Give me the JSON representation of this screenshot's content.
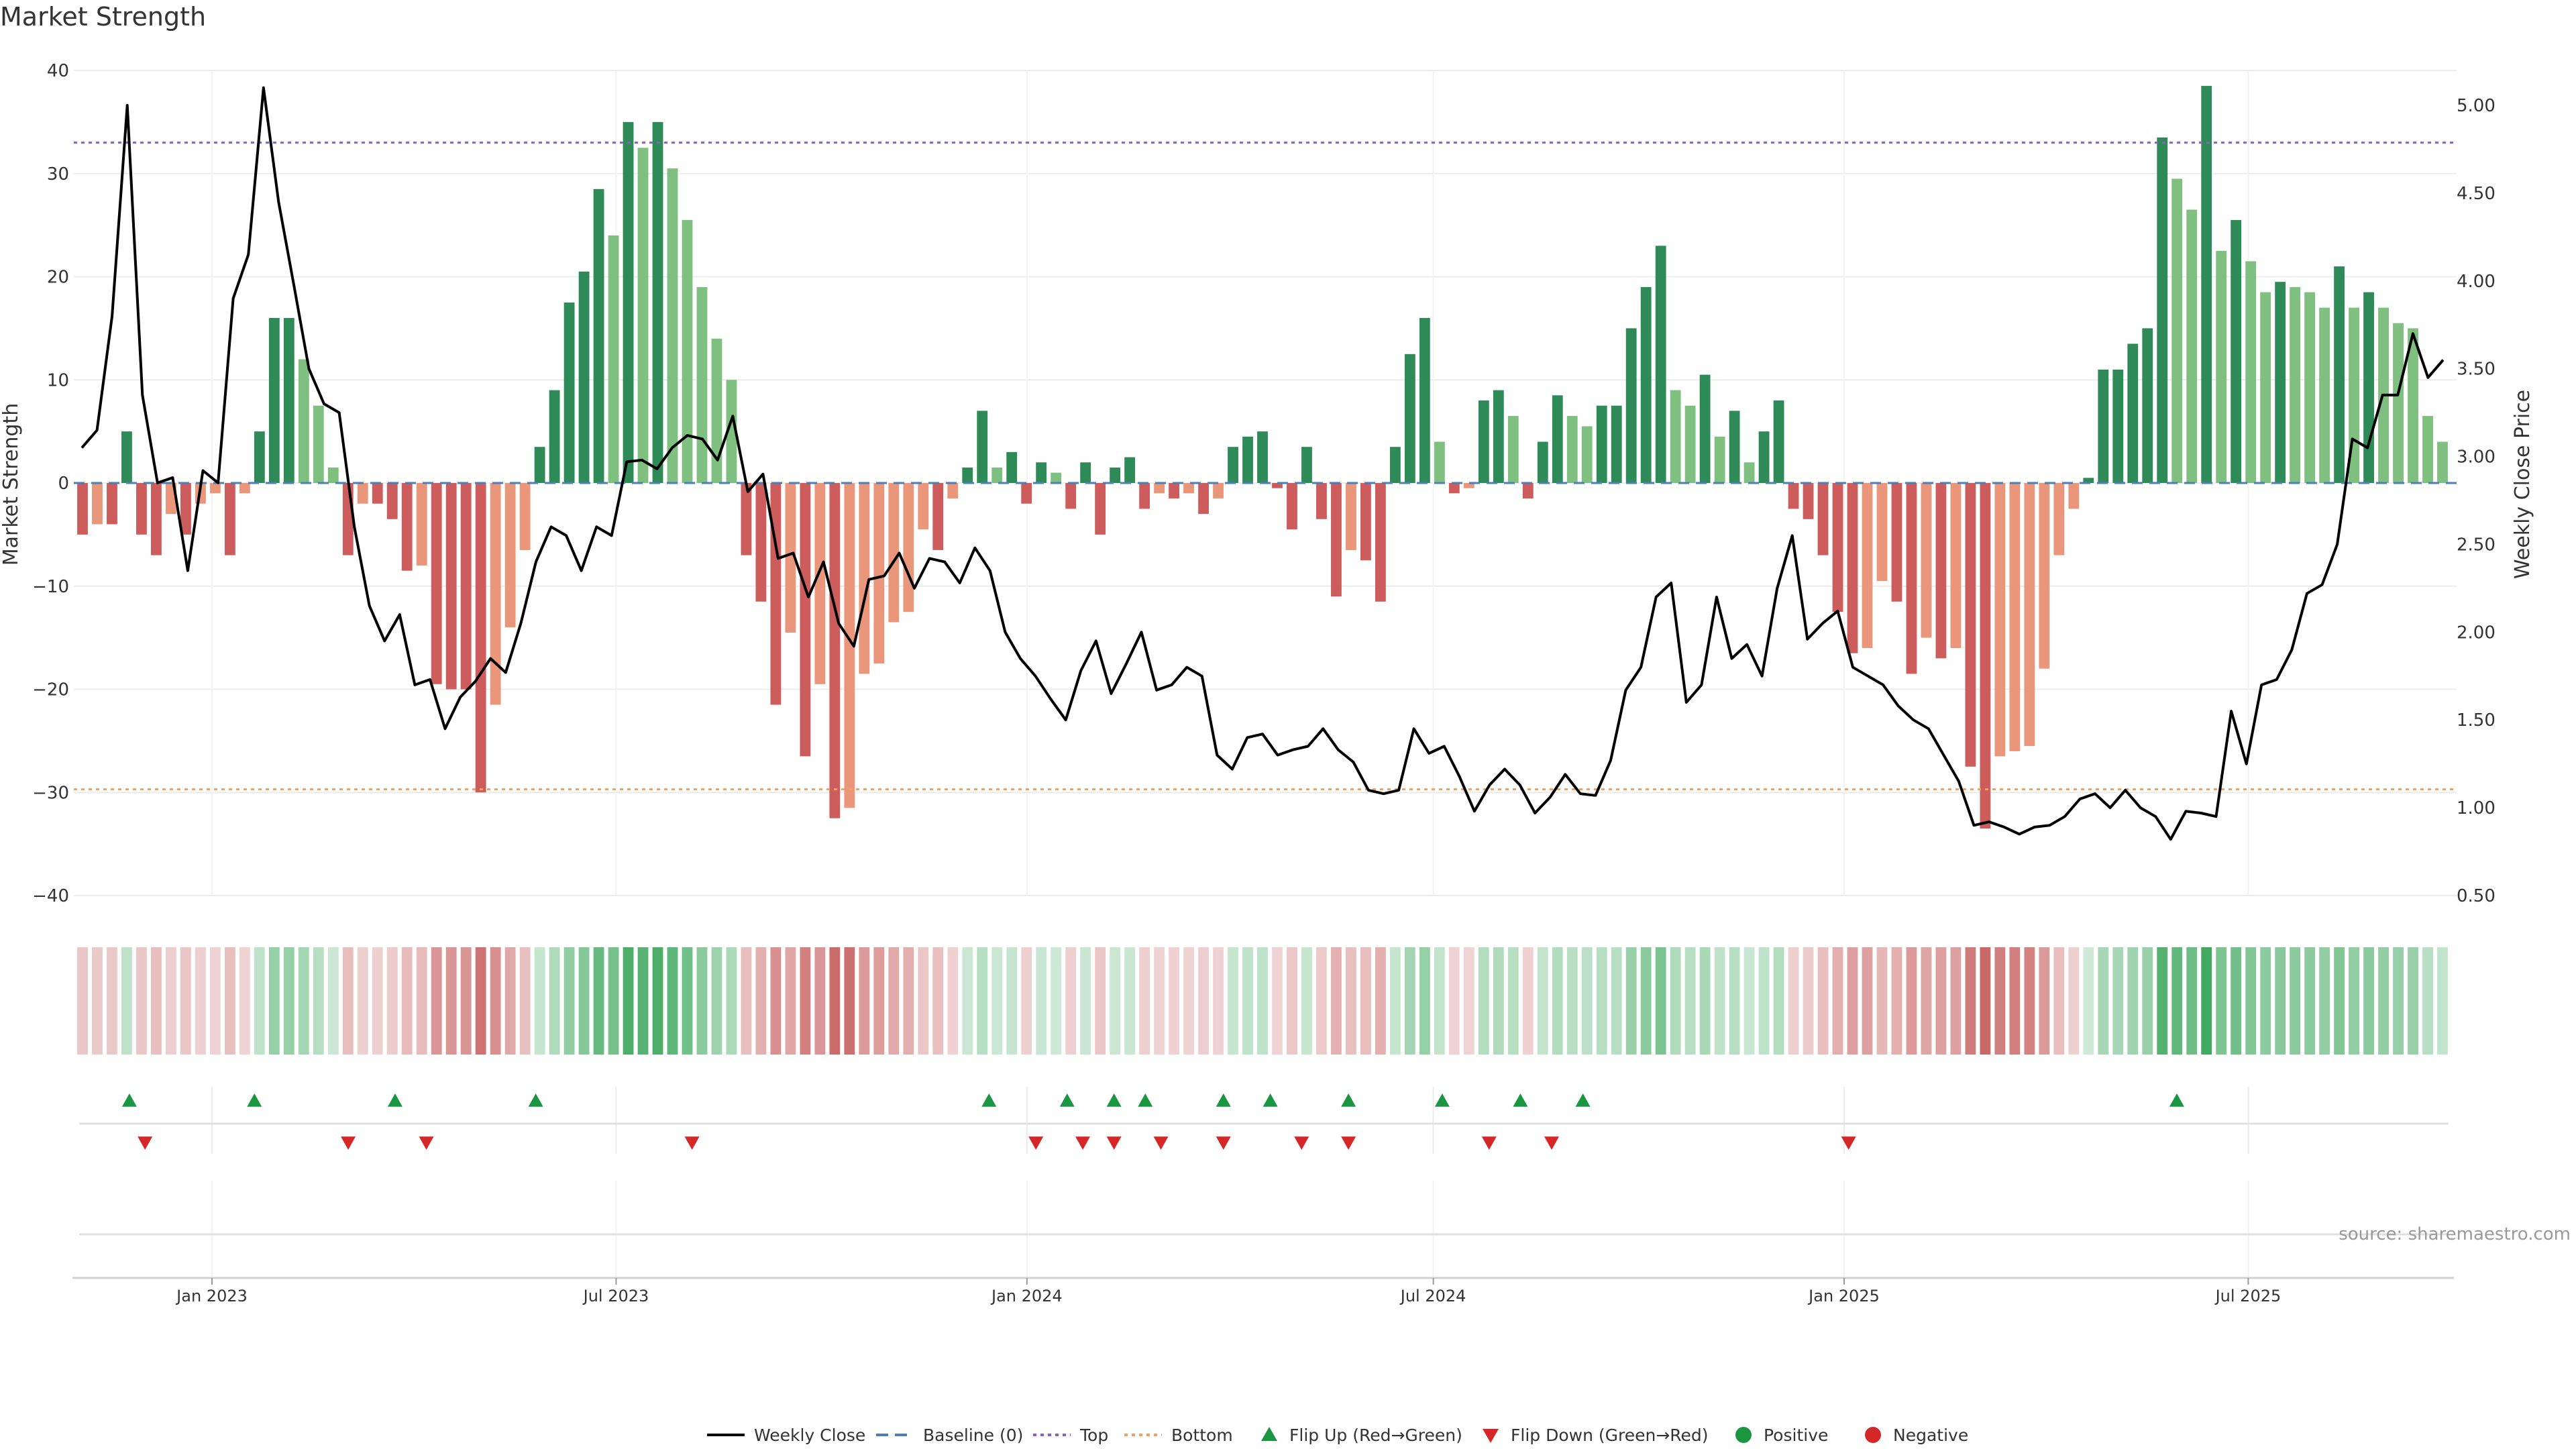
{
  "chart_data": {
    "type": "bar",
    "title": "Market Strength",
    "source": "source: sharemaestro.com",
    "ylabel_left": "Market Strength",
    "ylabel_right": "Weekly Close Price",
    "ylim_left": [
      -40,
      40
    ],
    "ylim_right": [
      0.5,
      5.0
    ],
    "yticks_left": [
      "40",
      "30",
      "20",
      "10",
      "0",
      "−10",
      "−20",
      "−30",
      "−40"
    ],
    "yticks_right": [
      "5.00",
      "4.50",
      "4.00",
      "3.50",
      "3.00",
      "2.50",
      "2.00",
      "1.50",
      "1.00",
      "0.50"
    ],
    "x_tick_labels": [
      "Jan 2023",
      "Jul 2023",
      "Jan 2024",
      "Jul 2024",
      "Jan 2025",
      "Jul 2025"
    ],
    "x_range": [
      "2022-11-04",
      "2025-09-26"
    ],
    "top_threshold": 33,
    "bottom_threshold": -29.7,
    "grid": true,
    "legend_position": "bottom",
    "colors": {
      "strong_green": "#2e8b57",
      "light_green": "#7fbf7f",
      "strong_red": "#cd5c5c",
      "light_red": "#e9967a",
      "price_line": "#000000",
      "top_line": "#8a60c0",
      "bottom_line": "#f0a060",
      "baseline": "#4a7fb8",
      "flip_up": "#1a9641",
      "flip_down": "#d62728"
    },
    "legend": [
      {
        "label": "Weekly Close",
        "symbol": "line"
      },
      {
        "label": "Baseline (0)",
        "symbol": "dash"
      },
      {
        "label": "Top",
        "symbol": "dot-purple"
      },
      {
        "label": "Bottom",
        "symbol": "dot-orange"
      },
      {
        "label": "Flip Up (Red→Green)",
        "symbol": "tri-up"
      },
      {
        "label": "Flip Down (Green→Red)",
        "symbol": "tri-down"
      },
      {
        "label": "Positive",
        "symbol": "dot-green"
      },
      {
        "label": "Negative",
        "symbol": "dot-red"
      }
    ],
    "strength": [
      -5,
      -4,
      -4,
      5,
      -5,
      -7,
      -3,
      -5,
      -2,
      -1,
      -7,
      -1,
      5,
      16,
      16,
      12,
      7.5,
      1.5,
      -7,
      -2,
      -2,
      -3.5,
      -8.5,
      -8,
      -19.5,
      -20,
      -20,
      -30,
      -21.5,
      -14,
      -6.5,
      3.5,
      9,
      17.5,
      20.5,
      28.5,
      24,
      35,
      32.5,
      35,
      30.5,
      25.5,
      19,
      14,
      10,
      -7,
      -11.5,
      -21.5,
      -14.5,
      -26.5,
      -19.5,
      -32.5,
      -31.5,
      -18.5,
      -17.5,
      -13.5,
      -12.5,
      -4.5,
      -6.5,
      -1.5,
      1.5,
      7,
      1.5,
      3,
      -2,
      2,
      1,
      -2.5,
      2,
      -5,
      1.5,
      2.5,
      -2.5,
      -1,
      -1.5,
      -1,
      -3,
      -1.5,
      3.5,
      4.5,
      5,
      -0.5,
      -4.5,
      3.5,
      -3.5,
      -11,
      -6.5,
      -7.5,
      -11.5,
      3.5,
      12.5,
      16,
      4,
      -1,
      -0.5,
      8,
      9,
      6.5,
      -1.5,
      4,
      8.5,
      6.5,
      5.5,
      7.5,
      7.5,
      15,
      19,
      23,
      9,
      7.5,
      10.5,
      4.5,
      7,
      2,
      5,
      8,
      -2.5,
      -3.5,
      -7,
      -12.5,
      -16.5,
      -16,
      -9.5,
      -11.5,
      -18.5,
      -15,
      -17,
      -16,
      -27.5,
      -33.5,
      -26.5,
      -26,
      -25.5,
      -18,
      -7,
      -2.5,
      0.5,
      11,
      11,
      13.5,
      15,
      33.5,
      29.5,
      26.5,
      38.5,
      22.5,
      25.5,
      21.5,
      18.5,
      19.5,
      19,
      18.5,
      17,
      21,
      17,
      18.5,
      17,
      15.5,
      15,
      6.5,
      4
    ],
    "weekly_close": [
      3.05,
      3.15,
      3.8,
      5.0,
      3.35,
      2.85,
      2.88,
      2.35,
      2.92,
      2.85,
      3.9,
      4.15,
      5.1,
      4.45,
      3.98,
      3.5,
      3.3,
      3.25,
      2.6,
      2.15,
      1.95,
      2.1,
      1.7,
      1.73,
      1.45,
      1.63,
      1.72,
      1.85,
      1.77,
      2.05,
      2.4,
      2.6,
      2.55,
      2.35,
      2.6,
      2.55,
      2.97,
      2.98,
      2.93,
      3.05,
      3.12,
      3.1,
      2.98,
      3.23,
      2.8,
      2.9,
      2.42,
      2.45,
      2.2,
      2.4,
      2.05,
      1.92,
      2.3,
      2.32,
      2.45,
      2.25,
      2.42,
      2.4,
      2.28,
      2.48,
      2.35,
      2.0,
      1.85,
      1.75,
      1.62,
      1.5,
      1.78,
      1.95,
      1.65,
      1.82,
      2.0,
      1.67,
      1.7,
      1.8,
      1.75,
      1.3,
      1.22,
      1.4,
      1.42,
      1.3,
      1.33,
      1.35,
      1.45,
      1.33,
      1.26,
      1.1,
      1.08,
      1.1,
      1.45,
      1.31,
      1.35,
      1.18,
      0.98,
      1.13,
      1.22,
      1.13,
      0.97,
      1.06,
      1.19,
      1.08,
      1.07,
      1.27,
      1.67,
      1.8,
      2.2,
      2.28,
      1.6,
      1.7,
      2.2,
      1.85,
      1.93,
      1.75,
      2.25,
      2.55,
      1.96,
      2.05,
      2.12,
      1.8,
      1.75,
      1.7,
      1.58,
      1.5,
      1.45,
      1.3,
      1.15,
      0.9,
      0.92,
      0.89,
      0.85,
      0.89,
      0.9,
      0.95,
      1.05,
      1.08,
      1.0,
      1.1,
      1.0,
      0.95,
      0.82,
      0.98,
      0.97,
      0.95,
      1.55,
      1.25,
      1.7,
      1.73,
      1.9,
      2.22,
      2.27,
      2.5,
      3.1,
      3.05,
      3.35,
      3.35,
      3.7,
      3.45,
      3.55
    ],
    "flip_up_dates": [
      "2022-11-25",
      "2023-01-20",
      "2023-03-24",
      "2023-05-26",
      "2023-12-15",
      "2024-01-19",
      "2024-02-09",
      "2024-02-23",
      "2024-03-29",
      "2024-04-19",
      "2024-05-24",
      "2024-07-05",
      "2024-08-09",
      "2024-09-06",
      "2025-05-30"
    ],
    "flip_down_dates": [
      "2022-12-02",
      "2023-03-03",
      "2023-04-07",
      "2023-08-04",
      "2024-01-05",
      "2024-01-26",
      "2024-02-09",
      "2024-03-01",
      "2024-03-29",
      "2024-05-03",
      "2024-05-24",
      "2024-07-26",
      "2024-08-23",
      "2025-01-03"
    ]
  }
}
